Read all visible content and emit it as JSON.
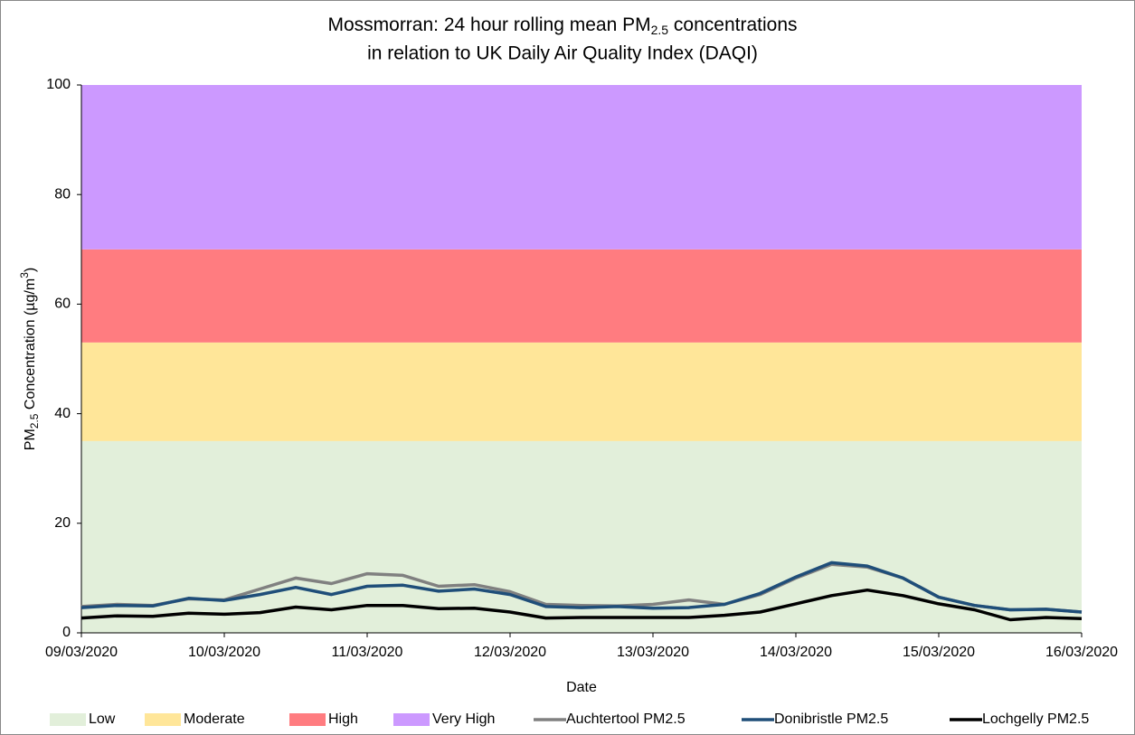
{
  "chart_data": {
    "type": "line",
    "title": {
      "before": "Mossmorran: 24 hour rolling mean PM",
      "sub": "2.5",
      "after": " concentrations",
      "line2": "in relation to UK Daily Air Quality Index (DAQI)"
    },
    "xlabel": "Date",
    "ylabel": [
      {
        "text": "PM"
      },
      {
        "sub": "2.5"
      },
      {
        "text": " Concentration (µg/m"
      },
      {
        "sup": "3"
      },
      {
        "text": ")"
      }
    ],
    "bands": [
      {
        "name": "Low",
        "color": "#e2efda",
        "value": 35
      },
      {
        "name": "Moderate",
        "color": "#ffe699",
        "value": 18
      },
      {
        "name": "High",
        "color": "#ff7c80",
        "value": 17
      },
      {
        "name": "Very High",
        "color": "#cc99ff",
        "value": 30
      }
    ],
    "x": [
      43899,
      43899.25,
      43899.5,
      43899.75,
      43900,
      43900.25,
      43900.5,
      43900.75,
      43901,
      43901.25,
      43901.5,
      43901.75,
      43902,
      43902.25,
      43902.5,
      43902.75,
      43903,
      43903.25,
      43903.5,
      43903.75,
      43904,
      43904.25,
      43904.5,
      43904.75,
      43905,
      43905.25,
      43905.5,
      43905.75,
      43906
    ],
    "series": [
      {
        "name": "Auchtertool PM2.5",
        "color": "#808080",
        "values": [
          4.8,
          5.2,
          5.0,
          6.2,
          6.0,
          8.0,
          10.0,
          9.0,
          10.8,
          10.5,
          8.5,
          8.8,
          7.5,
          5.2,
          5.0,
          4.9,
          5.2,
          6.0,
          5.2,
          7.0,
          10.0,
          12.5,
          12.0,
          10.0,
          6.5,
          5.0,
          4.2,
          4.3,
          3.8
        ]
      },
      {
        "name": "Donibristle PM2.5",
        "color": "#1f4e79",
        "values": [
          4.6,
          5.0,
          4.9,
          6.3,
          5.9,
          7.0,
          8.3,
          7.0,
          8.5,
          8.7,
          7.6,
          8.0,
          7.0,
          4.8,
          4.6,
          4.8,
          4.5,
          4.6,
          5.2,
          7.2,
          10.2,
          12.8,
          12.2,
          10.0,
          6.5,
          5.0,
          4.2,
          4.3,
          3.8
        ]
      },
      {
        "name": "Lochgelly PM2.5",
        "color": "#000000",
        "values": [
          2.7,
          3.1,
          3.0,
          3.6,
          3.4,
          3.7,
          4.7,
          4.2,
          5.0,
          5.0,
          4.4,
          4.5,
          3.8,
          2.7,
          2.8,
          2.8,
          2.8,
          2.8,
          3.2,
          3.8,
          5.3,
          6.8,
          7.8,
          6.8,
          5.3,
          4.2,
          2.4,
          2.8,
          2.6
        ]
      }
    ],
    "xlim": [
      43899,
      43906
    ],
    "xticks": [
      {
        "value": 43899,
        "label": "09/03/2020"
      },
      {
        "value": 43900,
        "label": "10/03/2020"
      },
      {
        "value": 43901,
        "label": "11/03/2020"
      },
      {
        "value": 43902,
        "label": "12/03/2020"
      },
      {
        "value": 43903,
        "label": "13/03/2020"
      },
      {
        "value": 43904,
        "label": "14/03/2020"
      },
      {
        "value": 43905,
        "label": "15/03/2020"
      },
      {
        "value": 43906,
        "label": "16/03/2020"
      }
    ],
    "ylim": [
      0,
      100
    ],
    "yticks": [
      0,
      20,
      40,
      60,
      80,
      100
    ],
    "grid": false,
    "legend": "bottom"
  }
}
